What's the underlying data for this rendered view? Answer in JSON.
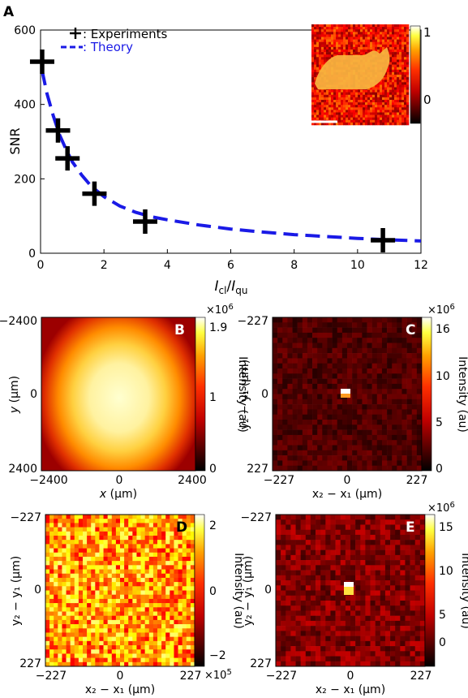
{
  "panel_A": {
    "letter": "A",
    "legend_experiments": ": Experiments",
    "legend_theory": ": Theory",
    "inset_cbar_ticks": [
      "1",
      "0"
    ]
  },
  "panel_B": {
    "letter": "B",
    "xticks": [
      "−2400",
      "0",
      "2400"
    ],
    "yticks": [
      "−2400",
      "0",
      "2400"
    ],
    "cbar_ticks": [
      "1.9",
      "1",
      "0"
    ],
    "cbar_exp": "×10",
    "cbar_exp_power": "6",
    "cbar_label": "Intensity (au)"
  },
  "panel_C": {
    "letter": "C",
    "xticks": [
      "−227",
      "0",
      "227"
    ],
    "yticks": [
      "−227",
      "0",
      "227"
    ],
    "cbar_ticks": [
      "16",
      "10",
      "5",
      "0"
    ],
    "cbar_exp": "×10",
    "cbar_exp_power": "6",
    "cbar_label": "Intensity (au)"
  },
  "panel_D": {
    "letter": "D",
    "xticks": [
      "−227",
      "0",
      "227"
    ],
    "yticks": [
      "−227",
      "0",
      "227"
    ],
    "cbar_ticks": [
      "2",
      "0",
      "−2"
    ],
    "cbar_exp": "×10",
    "cbar_exp_power": "5",
    "cbar_label": "Intensity (au)"
  },
  "panel_E": {
    "letter": "E",
    "xticks": [
      "−227",
      "0",
      "227"
    ],
    "yticks": [
      "−227",
      "0",
      "227"
    ],
    "cbar_ticks": [
      "15",
      "10",
      "5",
      "0"
    ],
    "cbar_exp": "×10",
    "cbar_exp_power": "6",
    "cbar_label": "Intensity (au)"
  },
  "chart_data": [
    {
      "panel": "A",
      "type": "scatter",
      "ylabel": "SNR",
      "xlabel_base": "I",
      "xlabel_sub1": "cl",
      "xlabel_sep": "/",
      "xlabel_sub2": "qu",
      "xlim": [
        0,
        12
      ],
      "ylim": [
        0,
        600
      ],
      "xticks": [
        0,
        2,
        4,
        6,
        8,
        10,
        12
      ],
      "yticks": [
        0,
        200,
        400,
        600
      ],
      "series": [
        {
          "name": "Experiments",
          "marker": "plus",
          "color": "#000000",
          "x": [
            0.05,
            0.55,
            0.85,
            1.7,
            3.3,
            10.8
          ],
          "y": [
            515,
            330,
            255,
            160,
            85,
            35
          ]
        },
        {
          "name": "Theory",
          "style": "dashed",
          "color": "#1a1ae6",
          "x": [
            0.05,
            0.2,
            0.4,
            0.6,
            0.8,
            1.0,
            1.3,
            1.6,
            2.0,
            2.5,
            3.0,
            3.5,
            4.0,
            5,
            6,
            7,
            8,
            9,
            10,
            11,
            12
          ],
          "y": [
            490,
            430,
            370,
            318,
            280,
            246,
            210,
            180,
            152,
            127,
            110,
            98,
            90,
            76,
            65,
            57,
            50,
            45,
            40,
            36,
            33
          ]
        }
      ]
    },
    {
      "panel": "B",
      "type": "heatmap",
      "x_unit": "(μm)",
      "y_unit": "(μm)",
      "xlabel_var": "x",
      "ylabel_var": "y",
      "extent": [
        -2400,
        2400
      ],
      "colorbar_max": 2.1,
      "colorbar_scale": "1e6",
      "colormap": "hot"
    },
    {
      "panel": "C",
      "type": "heatmap",
      "xlabel": "x₂ − x₁ (μm)",
      "ylabel": "y₂ − y₁ (μm)",
      "extent": [
        -227,
        227
      ],
      "colorbar_max": 17,
      "colorbar_scale": "1e6",
      "colormap": "hot"
    },
    {
      "panel": "D",
      "type": "heatmap",
      "xlabel": "x₂ − x₁ (μm)",
      "ylabel": "y₂ − y₁ (μm)",
      "extent": [
        -227,
        227
      ],
      "colorbar_range": [
        -2.4,
        2.4
      ],
      "colorbar_scale": "1e5",
      "colormap": "hot"
    },
    {
      "panel": "E",
      "type": "heatmap",
      "xlabel": "x₂ − x₁ (μm)",
      "ylabel": "y₂ − y₁ (μm)",
      "extent": [
        -227,
        227
      ],
      "colorbar_max": 16,
      "colorbar_scale": "1e6",
      "colormap": "hot"
    }
  ]
}
